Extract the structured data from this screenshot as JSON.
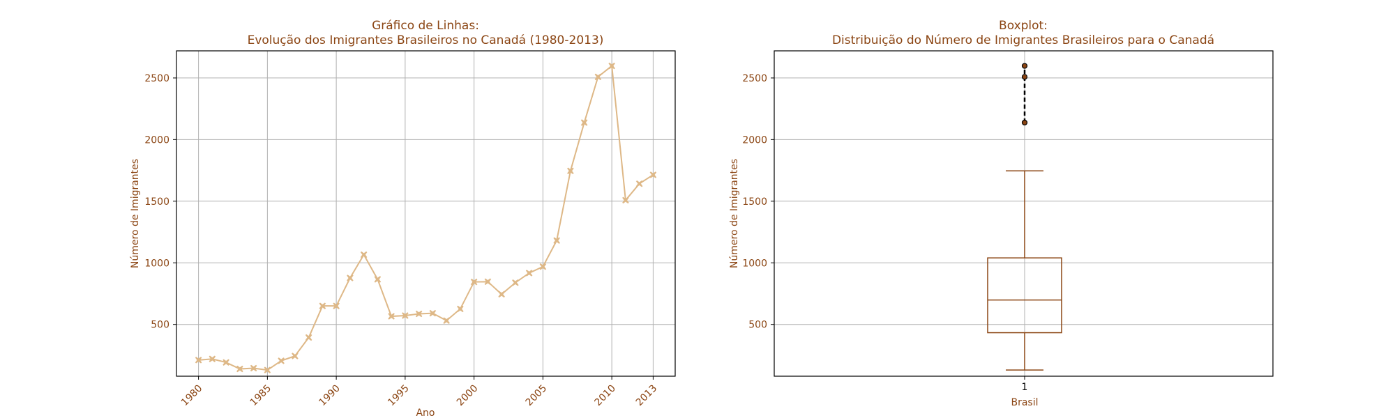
{
  "colors": {
    "line": "#DEB887",
    "marker": "#DEB887",
    "box": "#8B4513",
    "text": "#8B4513",
    "flier_fill": "#8B4513",
    "flier_edge": "#000000",
    "flier_line": "#000000",
    "grid": "#b0b0b0"
  },
  "chart_data": [
    {
      "type": "line",
      "title_line1": "Gráfico de Linhas:",
      "title_line2": "Evolução dos Imigrantes Brasileiros no Canadá (1980-2013)",
      "xlabel": "Ano",
      "ylabel": "Número de Imigrantes",
      "xlim": [
        1978.4,
        2014.6
      ],
      "ylim": [
        80,
        2720
      ],
      "xticks": [
        1980,
        1985,
        1990,
        1995,
        2000,
        2005,
        2010,
        2013
      ],
      "yticks": [
        500,
        1000,
        1500,
        2000,
        2500
      ],
      "grid": true,
      "marker": "X",
      "x": [
        1980,
        1981,
        1982,
        1983,
        1984,
        1985,
        1986,
        1987,
        1988,
        1989,
        1990,
        1991,
        1992,
        1993,
        1994,
        1995,
        1996,
        1997,
        1998,
        1999,
        2000,
        2001,
        2002,
        2003,
        2004,
        2005,
        2006,
        2007,
        2008,
        2009,
        2010,
        2011,
        2012,
        2013
      ],
      "series": [
        {
          "values": [
            211,
            220,
            192,
            139,
            145,
            130,
            205,
            244,
            394,
            650,
            650,
            877,
            1066,
            866,
            566,
            572,
            586,
            591,
            531,
            626,
            845,
            847,
            745,
            839,
            917,
            969,
            1181,
            1746,
            2138,
            2509,
            2598,
            1508,
            1642,
            1714
          ]
        }
      ]
    },
    {
      "type": "box",
      "title_line1": "Boxplot:",
      "title_line2": "Distribuição do Número de Imigrantes Brasileiros para o Canadá",
      "xlabel": "Brasil",
      "ylabel": "Número de Imigrantes",
      "xtick_label": "1",
      "ylim": [
        80,
        2720
      ],
      "yticks": [
        500,
        1000,
        1500,
        2000,
        2500
      ],
      "grid": true,
      "stats": {
        "whisker_low": 130,
        "q1": 433,
        "median": 698,
        "q3": 1040,
        "whisker_high": 1746,
        "fliers": [
          2138,
          2509,
          2598
        ]
      }
    }
  ]
}
